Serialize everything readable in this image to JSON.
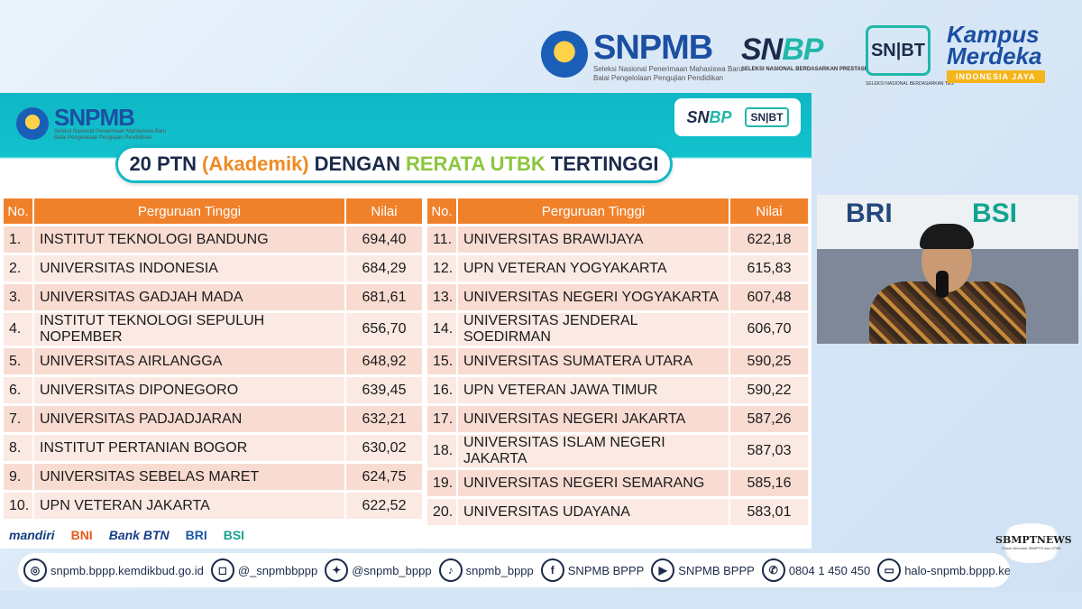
{
  "header": {
    "snpmb_label": "SNPMB",
    "snpmb_tagline": "Seleksi Nasional Penerimaan Mahasiswa Baru",
    "snpmb_org": "Balai Pengelolaan Pengujian Pendidikan",
    "snbp_label_a": "SN",
    "snbp_label_b": "BP",
    "snbp_sub": "SELEKSI NASIONAL BERDASARKAN PRESTASI",
    "snbt_label": "SN|BT",
    "snbt_sub": "SELEKSI NASIONAL BERDASARKAN TES",
    "kampus_merdeka_line1": "Kampus",
    "kampus_merdeka_line2": "Merdeka",
    "kampus_merdeka_tag": "INDONESIA JAYA"
  },
  "slide": {
    "logo_label": "SNPMB",
    "logo_tagline": "Seleksi Nasional Penerimaan Mahasiswa Baru",
    "logo_org": "Balai Pengelolaan Pengujian Pendidikan",
    "badge_snbp_a": "SN",
    "badge_snbp_b": "BP",
    "badge_snbt": "SN|BT",
    "title_part1": "20 PTN",
    "title_part2": "(Akademik)",
    "title_part3": "DENGAN",
    "title_part4": "RERATA UTBK",
    "title_part5": "TERTINGGI",
    "columns": {
      "no": "No.",
      "name": "Perguruan Tinggi",
      "value": "Nilai"
    },
    "rows_left": [
      {
        "no": "1.",
        "name": "INSTITUT TEKNOLOGI BANDUNG",
        "value": "694,40"
      },
      {
        "no": "2.",
        "name": "UNIVERSITAS INDONESIA",
        "value": "684,29"
      },
      {
        "no": "3.",
        "name": "UNIVERSITAS GADJAH MADA",
        "value": "681,61"
      },
      {
        "no": "4.",
        "name": "INSTITUT TEKNOLOGI SEPULUH NOPEMBER",
        "value": "656,70"
      },
      {
        "no": "5.",
        "name": "UNIVERSITAS AIRLANGGA",
        "value": "648,92"
      },
      {
        "no": "6.",
        "name": "UNIVERSITAS DIPONEGORO",
        "value": "639,45"
      },
      {
        "no": "7.",
        "name": "UNIVERSITAS PADJADJARAN",
        "value": "632,21"
      },
      {
        "no": "8.",
        "name": "INSTITUT PERTANIAN BOGOR",
        "value": "630,02"
      },
      {
        "no": "9.",
        "name": "UNIVERSITAS SEBELAS MARET",
        "value": "624,75"
      },
      {
        "no": "10.",
        "name": "UPN VETERAN JAKARTA",
        "value": "622,52"
      }
    ],
    "rows_right": [
      {
        "no": "11.",
        "name": "UNIVERSITAS BRAWIJAYA",
        "value": "622,18"
      },
      {
        "no": "12.",
        "name": "UPN VETERAN YOGYAKARTA",
        "value": "615,83"
      },
      {
        "no": "13.",
        "name": "UNIVERSITAS NEGERI YOGYAKARTA",
        "value": "607,48"
      },
      {
        "no": "14.",
        "name": "UNIVERSITAS JENDERAL SOEDIRMAN",
        "value": "606,70"
      },
      {
        "no": "15.",
        "name": "UNIVERSITAS SUMATERA UTARA",
        "value": "590,25"
      },
      {
        "no": "16.",
        "name": "UPN VETERAN JAWA TIMUR",
        "value": "590,22"
      },
      {
        "no": "17.",
        "name": "UNIVERSITAS NEGERI JAKARTA",
        "value": "587,26"
      },
      {
        "no": "18.",
        "name": "UNIVERSITAS ISLAM NEGERI JAKARTA",
        "value": "587,03"
      },
      {
        "no": "19.",
        "name": "UNIVERSITAS NEGERI SEMARANG",
        "value": "585,16"
      },
      {
        "no": "20.",
        "name": "UNIVERSITAS UDAYANA",
        "value": "583,01"
      }
    ],
    "sponsors": [
      "mandiri",
      "BNI",
      "Bank BTN",
      "BRI",
      "BSI"
    ]
  },
  "video": {
    "wall_left": "BRI",
    "wall_right": "BSI"
  },
  "watermark": {
    "main": "SBMPTNEWS",
    "sub": "Pusat Informasi SBMPTN dan UTBK"
  },
  "social": [
    {
      "icon": "globe-icon",
      "glyph": "◎",
      "text": "snpmb.bppp.kemdikbud.go.id"
    },
    {
      "icon": "instagram-icon",
      "glyph": "◻",
      "text": "@_snpmbbppp"
    },
    {
      "icon": "twitter-icon",
      "glyph": "✦",
      "text": "@snpmb_bppp"
    },
    {
      "icon": "tiktok-icon",
      "glyph": "♪",
      "text": "snpmb_bppp"
    },
    {
      "icon": "facebook-icon",
      "glyph": "f",
      "text": "SNPMB BPPP"
    },
    {
      "icon": "youtube-icon",
      "glyph": "▶",
      "text": "SNPMB BPPP"
    },
    {
      "icon": "phone-icon",
      "glyph": "✆",
      "text": "0804 1 450 450"
    },
    {
      "icon": "laptop-icon",
      "glyph": "▭",
      "text": "halo-snpmb.bppp.kemd"
    }
  ],
  "colors": {
    "header_orange": "#f0812b",
    "row_pink": "#f8dcd2",
    "teal": "#12b9c7",
    "navy": "#1c2b4a",
    "green": "#8cc63e"
  }
}
